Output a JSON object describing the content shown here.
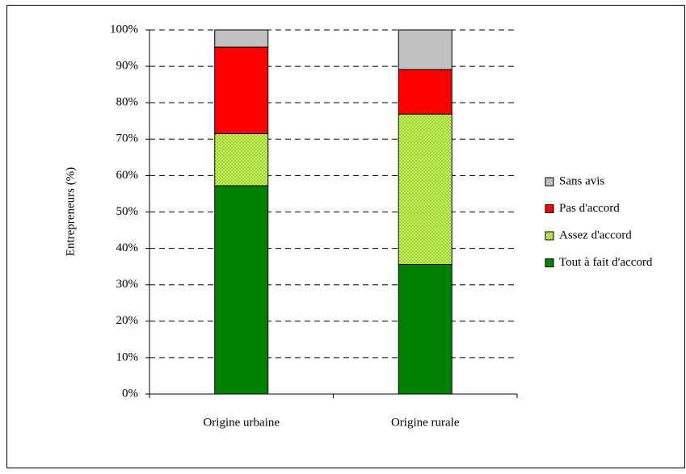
{
  "chart_data": {
    "type": "stacked-bar",
    "y_label": "Entrepreneurs (%)",
    "categories": [
      "Origine urbaine",
      "Origine rurale"
    ],
    "series": [
      {
        "name": "Tout à fait d'accord",
        "color": "#008000",
        "values": [
          57.2,
          35.6
        ]
      },
      {
        "name": "Assez d'accord",
        "color": "#ccff66",
        "pattern": "checker",
        "values": [
          14.3,
          41.3
        ]
      },
      {
        "name": "Pas d'accord",
        "color": "#ff0000",
        "values": [
          23.8,
          12.2
        ]
      },
      {
        "name": "Sans avis",
        "color": "#c0c0c0",
        "values": [
          4.7,
          10.9
        ]
      }
    ],
    "ylim": [
      0,
      100
    ],
    "yticks": [
      {
        "value": 0,
        "label": "0%"
      },
      {
        "value": 10,
        "label": "10%"
      },
      {
        "value": 20,
        "label": "20%"
      },
      {
        "value": 30,
        "label": "30%"
      },
      {
        "value": 40,
        "label": "40%"
      },
      {
        "value": 50,
        "label": "50%"
      },
      {
        "value": 60,
        "label": "60%"
      },
      {
        "value": 70,
        "label": "70%"
      },
      {
        "value": 80,
        "label": "80%"
      },
      {
        "value": 90,
        "label": "90%"
      },
      {
        "value": 100,
        "label": "100%"
      }
    ],
    "grid": true,
    "legend": "right"
  }
}
